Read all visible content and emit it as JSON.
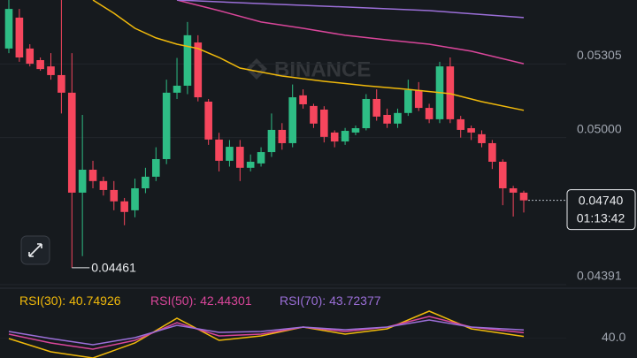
{
  "watermark": "BINANCE",
  "chart_data": {
    "type": "candlestick",
    "up_color": "#2ebd85",
    "down_color": "#f6465d",
    "open": [
      0.05369,
      0.05497,
      0.05369,
      0.05321,
      0.05295,
      0.05259,
      0.05186,
      0.04772,
      0.04867,
      0.0482,
      0.04783,
      0.04736,
      0.04699,
      0.0479,
      0.04838,
      0.04911,
      0.05186,
      0.05215,
      0.05394,
      0.05149,
      0.04992,
      0.04904,
      0.04962,
      0.04875,
      0.04893,
      0.0494,
      0.05032,
      0.04977,
      0.05175,
      0.05131,
      0.05116,
      0.05021,
      0.04984,
      0.05021,
      0.05039,
      0.0516,
      0.05094,
      0.05058,
      0.05102,
      0.05197,
      0.05123,
      0.05076,
      0.05295,
      0.05076,
      0.05039,
      0.05014,
      0.04977,
      0.049,
      0.0479,
      0.04772
    ],
    "high": [
      0.0557,
      0.05533,
      0.05387,
      0.05332,
      0.0535,
      0.0557,
      0.0535,
      0.05094,
      0.04904,
      0.04838,
      0.0482,
      0.0475,
      0.0483,
      0.04875,
      0.0496,
      0.0524,
      0.0533,
      0.05479,
      0.05424,
      0.0516,
      0.0502,
      0.0499,
      0.0499,
      0.0493,
      0.0496,
      0.051,
      0.0506,
      0.0522,
      0.052,
      0.0514,
      0.0513,
      0.0503,
      0.0504,
      0.0505,
      0.0518,
      0.052,
      0.0512,
      0.0512,
      0.0524,
      0.0523,
      0.0514,
      0.05314,
      0.05332,
      0.0509,
      0.0505,
      0.0503,
      0.0499,
      0.0491,
      0.048,
      0.0478
    ],
    "low": [
      0.0535,
      0.05314,
      0.05295,
      0.05277,
      0.0524,
      0.051,
      0.04461,
      0.04509,
      0.0479,
      0.0476,
      0.04699,
      0.04637,
      0.0467,
      0.0477,
      0.0482,
      0.0489,
      0.0516,
      0.0518,
      0.0515,
      0.0497,
      0.0486,
      0.0488,
      0.0482,
      0.0486,
      0.0488,
      0.0492,
      0.0495,
      0.0496,
      0.0512,
      0.0504,
      0.0498,
      0.0496,
      0.0497,
      0.0501,
      0.0503,
      0.0507,
      0.0504,
      0.0504,
      0.0509,
      0.0511,
      0.0506,
      0.0506,
      0.0506,
      0.05,
      0.0499,
      0.0496,
      0.0487,
      0.0472,
      0.04673,
      0.0469
    ],
    "close": [
      0.05533,
      0.05332,
      0.05306,
      0.05284,
      0.05259,
      0.05186,
      0.04772,
      0.04867,
      0.0482,
      0.04783,
      0.04736,
      0.04692,
      0.0479,
      0.04838,
      0.04911,
      0.05186,
      0.05215,
      0.05424,
      0.05167,
      0.04992,
      0.04904,
      0.04962,
      0.04875,
      0.049,
      0.0494,
      0.05032,
      0.04977,
      0.05167,
      0.05138,
      0.05058,
      0.05003,
      0.04984,
      0.05028,
      0.05039,
      0.0516,
      0.05087,
      0.05058,
      0.05102,
      0.05197,
      0.05123,
      0.05076,
      0.05295,
      0.05076,
      0.05032,
      0.05021,
      0.04977,
      0.049,
      0.0479,
      0.04772,
      0.0474
    ],
    "overlays": [
      {
        "color": "#f0b90b",
        "x": [
          8,
          10,
          12,
          14,
          16,
          18,
          20,
          22,
          26,
          30,
          34,
          38,
          42,
          45,
          49
        ],
        "values": [
          0.0557,
          0.05515,
          0.05453,
          0.05413,
          0.05387,
          0.05369,
          0.05332,
          0.05288,
          0.05255,
          0.05233,
          0.05215,
          0.052,
          0.05182,
          0.05149,
          0.05113
        ]
      },
      {
        "color": "#d9469a",
        "x": [
          16,
          20,
          24,
          28,
          32,
          36,
          40,
          44,
          49
        ],
        "values": [
          0.0557,
          0.05526,
          0.05479,
          0.05453,
          0.05424,
          0.05405,
          0.05387,
          0.05358,
          0.05306
        ]
      },
      {
        "color": "#9b6fd8",
        "x": [
          16,
          24,
          32,
          40,
          49
        ],
        "values": [
          0.0557,
          0.05555,
          0.05541,
          0.05526,
          0.05497
        ]
      }
    ],
    "ylim": [
      0.0438,
      0.0557
    ],
    "yticks": [
      0.05305,
      {
        "value": 0.05,
        "label": "0.05000"
      },
      0.04391
    ],
    "low_annotation": 0.04461,
    "last_price": {
      "value": 0.0474,
      "label": "0.04740"
    },
    "countdown": "01:13:42",
    "rsi": {
      "ylim": [
        31,
        55
      ],
      "yticks": [
        {
          "value": 40,
          "label": "40.0"
        }
      ],
      "x": [
        0,
        4,
        8,
        12,
        16,
        20,
        24,
        28,
        32,
        36,
        40,
        44,
        49
      ],
      "series": [
        {
          "name": "RSI(30):",
          "color": "#f0b90b",
          "values": [
            39.8,
            33.8,
            31.0,
            37.8,
            49.0,
            39.0,
            41.0,
            45.0,
            41.8,
            44.2,
            52.2,
            44.2,
            40.74926
          ]
        },
        {
          "name": "RSI(50):",
          "color": "#d9469a",
          "values": [
            41.8,
            37.8,
            35.0,
            39.0,
            47.0,
            41.0,
            41.8,
            45.0,
            43.0,
            45.0,
            49.8,
            45.0,
            42.44301
          ]
        },
        {
          "name": "RSI(70):",
          "color": "#9b6fd8",
          "values": [
            43.0,
            39.8,
            37.0,
            40.2,
            45.8,
            42.6,
            43.0,
            45.0,
            43.8,
            45.0,
            48.2,
            45.0,
            43.72377
          ]
        }
      ]
    }
  }
}
